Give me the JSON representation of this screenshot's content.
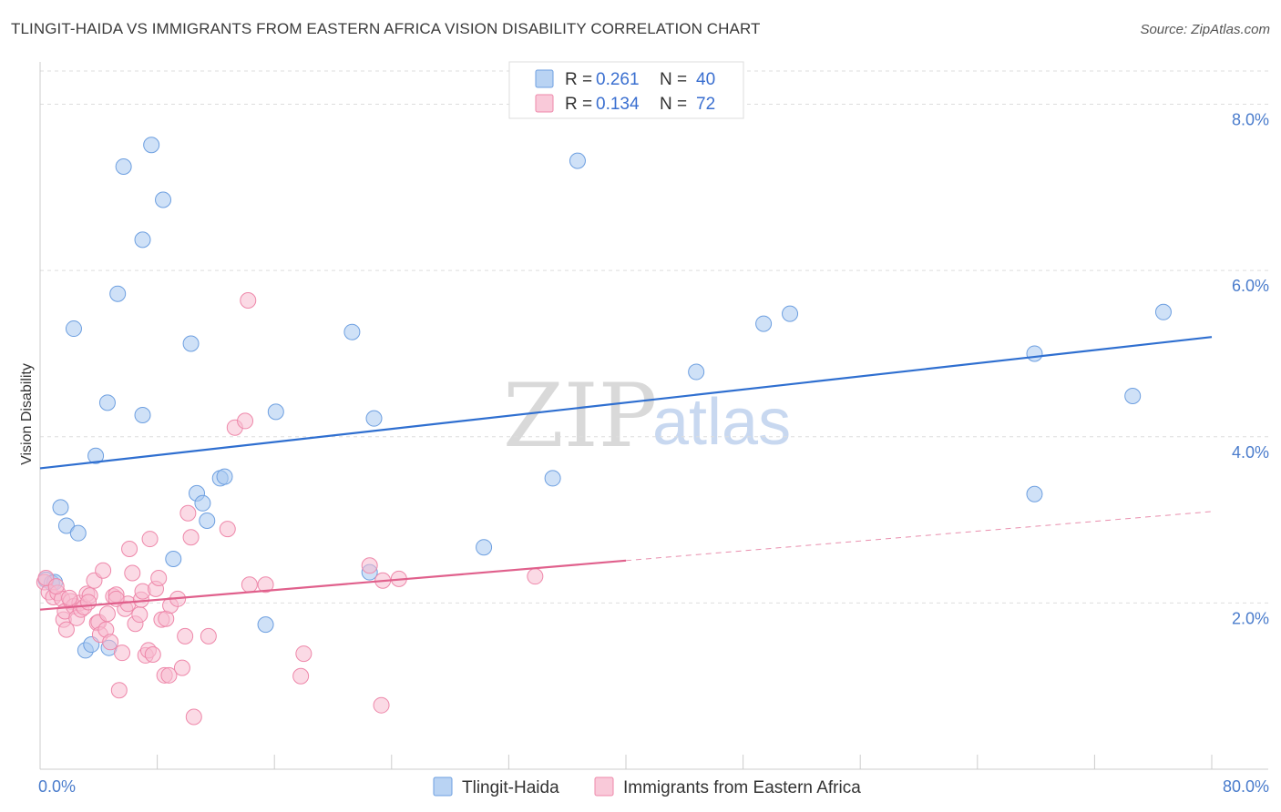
{
  "title": "TLINGIT-HAIDA VS IMMIGRANTS FROM EASTERN AFRICA VISION DISABILITY CORRELATION CHART",
  "source": "Source: ZipAtlas.com",
  "watermark": {
    "zip": "ZIP",
    "atlas": "atlas"
  },
  "chart_data": {
    "type": "scatter",
    "ylabel": "Vision Disability",
    "xlim": [
      0,
      80
    ],
    "ylim": [
      0,
      8.4
    ],
    "x_tick_labels": [
      {
        "value": 0,
        "label": "0.0%"
      },
      {
        "value": 80,
        "label": "80.0%"
      }
    ],
    "x_minor_ticks": [
      0,
      8,
      16,
      24,
      32,
      40,
      48,
      56,
      64,
      72,
      80
    ],
    "y_ticks": [
      {
        "value": 2,
        "label": "2.0%"
      },
      {
        "value": 4,
        "label": "4.0%"
      },
      {
        "value": 6,
        "label": "6.0%"
      },
      {
        "value": 8,
        "label": "8.0%"
      }
    ],
    "grid": true,
    "legend": {
      "placement": "top-center",
      "entries": [
        {
          "r_label": "R = ",
          "r_value": "0.261",
          "n_label": "N = ",
          "n_value": "40",
          "color": "#a8c8f0",
          "stroke": "#6d9fe0"
        },
        {
          "r_label": "R = ",
          "r_value": "0.134",
          "n_label": "N = ",
          "n_value": "72",
          "color": "#f8bcd0",
          "stroke": "#ee88aa"
        }
      ]
    },
    "series": [
      {
        "name": "Tlingit-Haida",
        "color": "#a8c8f0",
        "stroke": "#6d9fe0",
        "line_color": "#2f6fd0",
        "trend": {
          "x0": 0,
          "y0": 3.62,
          "x1": 80,
          "y1": 5.2,
          "solid_until": 80
        },
        "points": [
          [
            0.4,
            2.28
          ],
          [
            0.8,
            2.24
          ],
          [
            1.4,
            3.15
          ],
          [
            1.8,
            2.93
          ],
          [
            2.3,
            5.3
          ],
          [
            2.6,
            2.84
          ],
          [
            3.1,
            1.43
          ],
          [
            3.5,
            1.5
          ],
          [
            3.8,
            3.77
          ],
          [
            4.6,
            4.41
          ],
          [
            4.7,
            1.46
          ],
          [
            5.3,
            5.72
          ],
          [
            5.7,
            7.25
          ],
          [
            7.0,
            6.37
          ],
          [
            7.0,
            4.26
          ],
          [
            7.6,
            7.51
          ],
          [
            8.4,
            6.85
          ],
          [
            9.1,
            2.53
          ],
          [
            10.3,
            5.12
          ],
          [
            10.7,
            3.32
          ],
          [
            11.1,
            3.2
          ],
          [
            11.4,
            2.99
          ],
          [
            12.3,
            3.5
          ],
          [
            12.6,
            3.52
          ],
          [
            15.4,
            1.74
          ],
          [
            16.1,
            4.3
          ],
          [
            21.3,
            5.26
          ],
          [
            22.5,
            2.37
          ],
          [
            22.8,
            4.22
          ],
          [
            30.3,
            2.67
          ],
          [
            35.0,
            3.5
          ],
          [
            36.7,
            7.32
          ],
          [
            44.8,
            4.78
          ],
          [
            49.4,
            5.36
          ],
          [
            51.2,
            5.48
          ],
          [
            67.9,
            5.0
          ],
          [
            67.9,
            3.31
          ],
          [
            74.6,
            4.49
          ],
          [
            76.7,
            5.5
          ],
          [
            1.0,
            2.25
          ]
        ]
      },
      {
        "name": "Immigrants from Eastern Africa",
        "color": "#f8bcd0",
        "stroke": "#ee88aa",
        "line_color": "#e0608c",
        "trend": {
          "x0": 0,
          "y0": 1.92,
          "x1": 80,
          "y1": 3.1,
          "solid_until": 40
        },
        "points": [
          [
            0.3,
            2.25
          ],
          [
            0.6,
            2.13
          ],
          [
            0.9,
            2.07
          ],
          [
            1.2,
            2.12
          ],
          [
            1.5,
            2.05
          ],
          [
            1.6,
            1.8
          ],
          [
            1.7,
            1.9
          ],
          [
            1.8,
            1.68
          ],
          [
            2.1,
            2.02
          ],
          [
            2.3,
            1.96
          ],
          [
            2.5,
            1.82
          ],
          [
            2.7,
            2.0
          ],
          [
            2.8,
            1.92
          ],
          [
            3.0,
            1.95
          ],
          [
            3.2,
            2.11
          ],
          [
            3.4,
            2.09
          ],
          [
            3.7,
            2.27
          ],
          [
            3.9,
            1.76
          ],
          [
            4.0,
            1.77
          ],
          [
            4.1,
            1.62
          ],
          [
            4.3,
            2.39
          ],
          [
            4.5,
            1.68
          ],
          [
            4.6,
            1.87
          ],
          [
            4.8,
            1.53
          ],
          [
            5.0,
            2.08
          ],
          [
            5.2,
            2.1
          ],
          [
            5.4,
            0.95
          ],
          [
            5.6,
            1.4
          ],
          [
            5.8,
            1.93
          ],
          [
            6.0,
            1.99
          ],
          [
            6.1,
            2.65
          ],
          [
            6.3,
            2.36
          ],
          [
            6.5,
            1.75
          ],
          [
            6.8,
            1.86
          ],
          [
            6.9,
            2.04
          ],
          [
            7.0,
            2.14
          ],
          [
            7.2,
            1.37
          ],
          [
            7.4,
            1.43
          ],
          [
            7.5,
            2.77
          ],
          [
            7.7,
            1.38
          ],
          [
            7.9,
            2.17
          ],
          [
            8.1,
            2.3
          ],
          [
            8.3,
            1.8
          ],
          [
            8.5,
            1.13
          ],
          [
            8.6,
            1.81
          ],
          [
            8.8,
            1.13
          ],
          [
            8.9,
            1.97
          ],
          [
            9.4,
            2.05
          ],
          [
            9.7,
            1.22
          ],
          [
            9.9,
            1.6
          ],
          [
            10.1,
            3.08
          ],
          [
            10.3,
            2.79
          ],
          [
            10.5,
            0.63
          ],
          [
            11.5,
            1.6
          ],
          [
            12.8,
            2.89
          ],
          [
            13.3,
            4.11
          ],
          [
            14.0,
            4.19
          ],
          [
            14.2,
            5.64
          ],
          [
            14.3,
            2.22
          ],
          [
            15.4,
            2.22
          ],
          [
            17.8,
            1.12
          ],
          [
            18.0,
            1.39
          ],
          [
            22.5,
            2.45
          ],
          [
            23.3,
            0.77
          ],
          [
            23.4,
            2.27
          ],
          [
            24.5,
            2.29
          ],
          [
            33.8,
            2.32
          ],
          [
            0.4,
            2.3
          ],
          [
            1.1,
            2.2
          ],
          [
            2.0,
            2.06
          ],
          [
            3.3,
            2.01
          ],
          [
            5.2,
            2.05
          ]
        ]
      }
    ]
  },
  "bottom_legend": [
    {
      "label": "Tlingit-Haida",
      "color": "#a8c8f0",
      "stroke": "#6d9fe0"
    },
    {
      "label": "Immigrants from Eastern Africa",
      "color": "#f8bcd0",
      "stroke": "#ee88aa"
    }
  ]
}
